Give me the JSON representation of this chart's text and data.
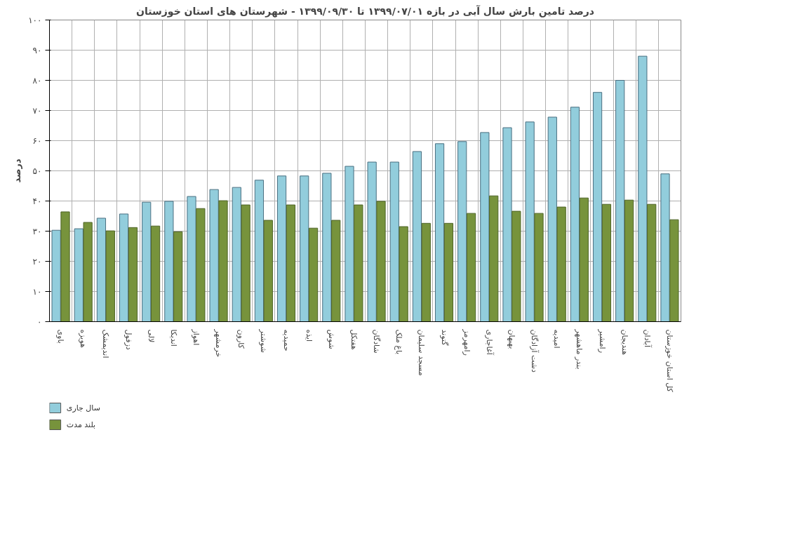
{
  "chart_data": {
    "type": "bar",
    "title": "درصد تامین بارش سال آبی در بازه ۱۳۹۹/۰۷/۰۱ تا ۱۳۹۹/۰۹/۳۰ - شهرستان های استان خوزستان",
    "ylabel": "درصد",
    "categories": [
      "باوی",
      "هویزه",
      "اندیمشک",
      "دزفول",
      "لالی",
      "اندیکا",
      "اهواز",
      "خرمشهر",
      "کارون",
      "شوشتر",
      "حمیدیه",
      "ایذه",
      "شوش",
      "هفتکل",
      "شادگان",
      "باغ ملک",
      "مسجد سلیمان",
      "گتوند",
      "رامهرمز",
      "آغاجاری",
      "بهبهان",
      "دشت آزادگان",
      "امیدیه",
      "بندر ماهشهر",
      "رامشیر",
      "هندیجان",
      "آبادان",
      "کل استان خوزستان"
    ],
    "series": [
      {
        "name": "سال جاری",
        "color": "#92cddc",
        "values": [
          30.3,
          30.8,
          34.3,
          35.7,
          39.6,
          39.9,
          41.5,
          43.8,
          44.5,
          46.9,
          48.3,
          48.3,
          49.2,
          51.5,
          52.9,
          52.9,
          56.4,
          59.0,
          59.7,
          62.7,
          64.3,
          66.2,
          67.8,
          71.1,
          76.0,
          80.0,
          88.0,
          49.0
        ]
      },
      {
        "name": "بلند مدت",
        "color": "#77933c",
        "values": [
          36.4,
          32.9,
          30.1,
          31.2,
          31.7,
          29.8,
          37.5,
          40.1,
          38.7,
          33.6,
          38.7,
          31.0,
          33.6,
          38.7,
          39.9,
          31.5,
          32.6,
          32.6,
          35.9,
          41.7,
          36.6,
          35.9,
          38.0,
          41.0,
          38.9,
          40.3,
          38.9,
          33.8
        ]
      }
    ],
    "ylim": [
      0,
      100
    ],
    "yticks": [
      {
        "value": 0,
        "label": "۰"
      },
      {
        "value": 10,
        "label": "۱۰"
      },
      {
        "value": 20,
        "label": "۲۰"
      },
      {
        "value": 30,
        "label": "۳۰"
      },
      {
        "value": 40,
        "label": "۴۰"
      },
      {
        "value": 50,
        "label": "۵۰"
      },
      {
        "value": 60,
        "label": "۶۰"
      },
      {
        "value": 70,
        "label": "۷۰"
      },
      {
        "value": 80,
        "label": "۸۰"
      },
      {
        "value": 90,
        "label": "۹۰"
      },
      {
        "value": 100,
        "label": "۱۰۰"
      }
    ],
    "grid": true,
    "legend": "bottom left"
  }
}
